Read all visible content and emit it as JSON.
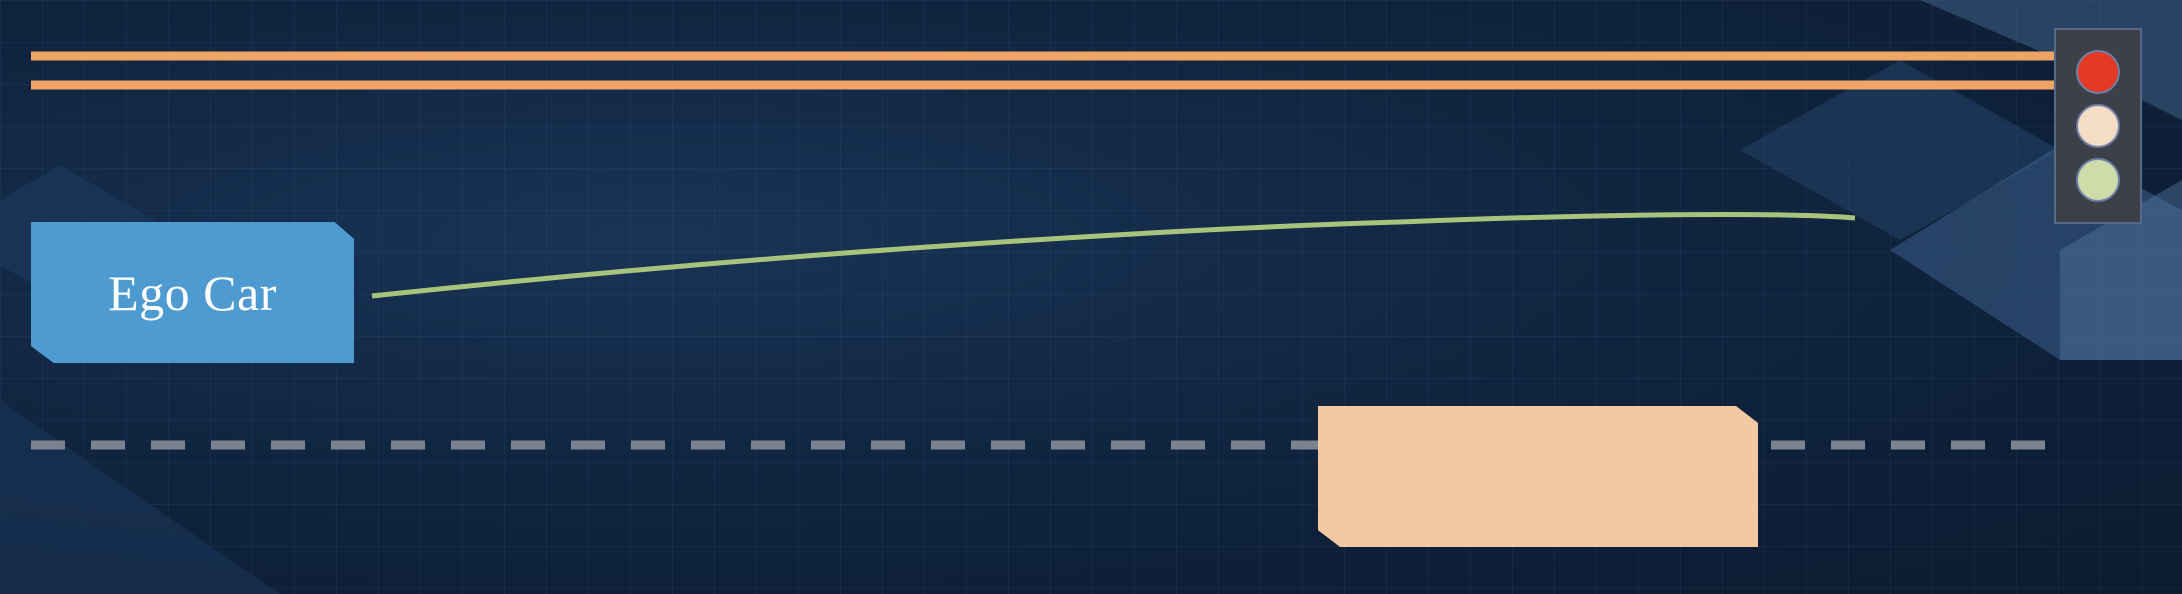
{
  "ego_car": {
    "label": "Ego Car",
    "color": "#4d9bd1",
    "text_color": "#ffffff"
  },
  "other_vehicle": {
    "color": "#f3c9a1"
  },
  "road": {
    "solid_line_color": "#f0a466",
    "dashed_line_color": "#7d8290"
  },
  "trajectory": {
    "color": "#a8c47c"
  },
  "traffic_light": {
    "housing_color": "#3d4047",
    "lamps": [
      {
        "state": "on",
        "color": "#e23a25"
      },
      {
        "state": "off",
        "color": "#f4dcc6"
      },
      {
        "state": "off",
        "color": "#cfdba8"
      }
    ]
  },
  "background": {
    "color": "#0f2239"
  }
}
